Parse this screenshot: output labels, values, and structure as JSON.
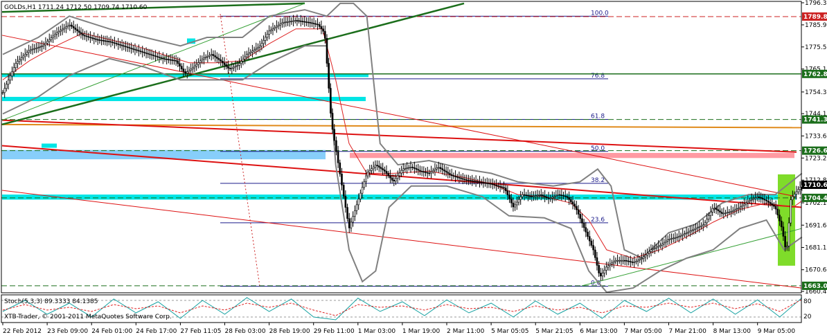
{
  "window": {
    "symbol_header": "GOLDs,H1  1711.24 1712.50 1709.74 1710.60",
    "stoch_header": "Stoch(5,3,3) 89.3333 84.1385",
    "copyright": "XTB-Trader, © 2001-2011 MetaQuotes Software Corp."
  },
  "chart_data": {
    "type": "candlestick",
    "instrument": "GOLDs",
    "timeframe": "H1",
    "last_ohlc": {
      "open": 1711.24,
      "high": 1712.5,
      "low": 1709.74,
      "close": 1710.6
    },
    "ylim": [
      1660.4,
      1796.3
    ],
    "y_ticks": [
      {
        "v": 1796.3,
        "label": "1796.30"
      },
      {
        "v": 1785.9,
        "label": "1785.90"
      },
      {
        "v": 1775.5,
        "label": "1775.50"
      },
      {
        "v": 1765.1,
        "label": "1765.10"
      },
      {
        "v": 1754.3,
        "label": "1754.30"
      },
      {
        "v": 1744.1,
        "label": "1744.10"
      },
      {
        "v": 1733.6,
        "label": "1733.60"
      },
      {
        "v": 1723.2,
        "label": "1723.20"
      },
      {
        "v": 1712.8,
        "label": "1712.80"
      },
      {
        "v": 1702.1,
        "label": "1702.10"
      },
      {
        "v": 1691.6,
        "label": "1691.60"
      },
      {
        "v": 1681.1,
        "label": "1681.10"
      },
      {
        "v": 1670.6,
        "label": "1670.60"
      },
      {
        "v": 1660.4,
        "label": "1660.40"
      }
    ],
    "price_tags": [
      {
        "v": 1789.8,
        "label": "1789.80",
        "color": "#cc2222"
      },
      {
        "v": 1762.8,
        "label": "1762.80",
        "color": "#1b6e1b"
      },
      {
        "v": 1741.35,
        "label": "1741.35",
        "color": "#1b6e1b"
      },
      {
        "v": 1726.67,
        "label": "1726.67",
        "color": "#1b6e1b"
      },
      {
        "v": 1710.6,
        "label": "1710.60",
        "color": "#000000"
      },
      {
        "v": 1704.43,
        "label": "1704.43",
        "color": "#1b6e1b"
      },
      {
        "v": 1663.04,
        "label": "1663.04",
        "color": "#1b6e1b"
      }
    ],
    "x_ticks": [
      "22 Feb 2012",
      "23 Feb 09:00",
      "24 Feb 01:00",
      "24 Feb 17:00",
      "27 Feb 11:05",
      "28 Feb 03:00",
      "28 Feb 19:00",
      "29 Feb 11:00",
      "1 Mar 03:00",
      "1 Mar 19:00",
      "2 Mar 11:00",
      "5 Mar 05:05",
      "5 Mar 21:05",
      "6 Mar 13:00",
      "7 Mar 05:00",
      "7 Mar 21:00",
      "8 Mar 13:00",
      "9 Mar 05:00"
    ],
    "x_ticks_extent": [
      0,
      17
    ],
    "fibonacci": [
      {
        "label": "100.0",
        "v": 1790.0
      },
      {
        "label": "76.8",
        "v": 1760.5
      },
      {
        "label": "61.8",
        "v": 1741.4
      },
      {
        "label": "50.0",
        "v": 1726.3
      },
      {
        "label": "38.2",
        "v": 1711.3
      },
      {
        "label": "23.6",
        "v": 1692.7
      },
      {
        "label": "0.0",
        "v": 1662.8
      }
    ],
    "close_path": [
      [
        0,
        1754
      ],
      [
        0.3,
        1768
      ],
      [
        0.6,
        1774
      ],
      [
        0.9,
        1776
      ],
      [
        1.2,
        1782
      ],
      [
        1.5,
        1786
      ],
      [
        1.8,
        1781
      ],
      [
        2.1,
        1779
      ],
      [
        2.4,
        1778
      ],
      [
        2.7,
        1776
      ],
      [
        3.0,
        1774
      ],
      [
        3.3,
        1772
      ],
      [
        3.6,
        1770
      ],
      [
        3.9,
        1769
      ],
      [
        4.1,
        1763
      ],
      [
        4.3,
        1766
      ],
      [
        4.5,
        1770
      ],
      [
        4.7,
        1772
      ],
      [
        4.9,
        1769
      ],
      [
        5.1,
        1765
      ],
      [
        5.3,
        1767
      ],
      [
        5.5,
        1772
      ],
      [
        5.8,
        1776
      ],
      [
        6.0,
        1783
      ],
      [
        6.3,
        1787
      ],
      [
        6.6,
        1788
      ],
      [
        6.9,
        1787
      ],
      [
        7.1,
        1786
      ],
      [
        7.25,
        1782
      ],
      [
        7.4,
        1740
      ],
      [
        7.6,
        1715
      ],
      [
        7.8,
        1690
      ],
      [
        8.0,
        1703
      ],
      [
        8.2,
        1716
      ],
      [
        8.4,
        1720
      ],
      [
        8.6,
        1717
      ],
      [
        8.8,
        1712
      ],
      [
        9.0,
        1718
      ],
      [
        9.2,
        1719
      ],
      [
        9.4,
        1717
      ],
      [
        9.6,
        1716
      ],
      [
        9.8,
        1719
      ],
      [
        10.1,
        1715
      ],
      [
        10.4,
        1713
      ],
      [
        10.7,
        1712
      ],
      [
        11.0,
        1711
      ],
      [
        11.3,
        1709
      ],
      [
        11.5,
        1700
      ],
      [
        11.7,
        1706
      ],
      [
        11.9,
        1705
      ],
      [
        12.1,
        1706
      ],
      [
        12.3,
        1704
      ],
      [
        12.5,
        1706
      ],
      [
        12.7,
        1705
      ],
      [
        12.9,
        1700
      ],
      [
        13.1,
        1690
      ],
      [
        13.3,
        1680
      ],
      [
        13.45,
        1667
      ],
      [
        13.6,
        1672
      ],
      [
        13.8,
        1675
      ],
      [
        14.0,
        1675
      ],
      [
        14.2,
        1674
      ],
      [
        14.4,
        1676
      ],
      [
        14.6,
        1680
      ],
      [
        14.8,
        1682
      ],
      [
        15.0,
        1685
      ],
      [
        15.2,
        1686
      ],
      [
        15.4,
        1688
      ],
      [
        15.6,
        1690
      ],
      [
        15.8,
        1692
      ],
      [
        16.0,
        1700
      ],
      [
        16.2,
        1697
      ],
      [
        16.4,
        1698
      ],
      [
        16.6,
        1700
      ],
      [
        16.8,
        1703
      ],
      [
        17.0,
        1705
      ],
      [
        17.2,
        1703
      ],
      [
        17.4,
        1700
      ],
      [
        17.55,
        1690
      ],
      [
        17.65,
        1678
      ],
      [
        17.75,
        1704
      ],
      [
        17.9,
        1708
      ],
      [
        18.0,
        1710.6
      ]
    ],
    "moving_average_path": [
      [
        0,
        1760
      ],
      [
        0.6,
        1769
      ],
      [
        1.2,
        1776
      ],
      [
        1.8,
        1782
      ],
      [
        2.4,
        1779
      ],
      [
        3.0,
        1776
      ],
      [
        3.6,
        1772
      ],
      [
        4.2,
        1768
      ],
      [
        4.8,
        1768
      ],
      [
        5.4,
        1769
      ],
      [
        6.0,
        1777
      ],
      [
        6.6,
        1784
      ],
      [
        7.2,
        1784
      ],
      [
        7.5,
        1760
      ],
      [
        7.8,
        1730
      ],
      [
        8.2,
        1716
      ],
      [
        8.8,
        1716
      ],
      [
        9.6,
        1717
      ],
      [
        10.4,
        1714
      ],
      [
        11.0,
        1711
      ],
      [
        11.6,
        1706
      ],
      [
        12.2,
        1705
      ],
      [
        12.8,
        1702
      ],
      [
        13.2,
        1694
      ],
      [
        13.6,
        1680
      ],
      [
        14.2,
        1676
      ],
      [
        14.8,
        1680
      ],
      [
        15.4,
        1686
      ],
      [
        16.0,
        1693
      ],
      [
        16.6,
        1699
      ],
      [
        17.2,
        1702
      ],
      [
        17.8,
        1700
      ],
      [
        18.0,
        1703
      ]
    ],
    "bollinger_upper_path": [
      [
        0,
        1772
      ],
      [
        0.8,
        1780
      ],
      [
        1.5,
        1790
      ],
      [
        2.4,
        1784
      ],
      [
        3.2,
        1780
      ],
      [
        4.0,
        1776
      ],
      [
        4.6,
        1780
      ],
      [
        5.4,
        1780
      ],
      [
        6.0,
        1790
      ],
      [
        6.8,
        1793
      ],
      [
        7.3,
        1790
      ],
      [
        7.6,
        1796
      ],
      [
        7.9,
        1796
      ],
      [
        8.2,
        1790
      ],
      [
        8.5,
        1730
      ],
      [
        8.9,
        1720
      ],
      [
        9.6,
        1722
      ],
      [
        10.4,
        1718
      ],
      [
        11.0,
        1716
      ],
      [
        11.6,
        1712
      ],
      [
        12.4,
        1710
      ],
      [
        13.0,
        1712
      ],
      [
        13.4,
        1718
      ],
      [
        13.7,
        1710
      ],
      [
        14.0,
        1680
      ],
      [
        14.4,
        1676
      ],
      [
        15.0,
        1688
      ],
      [
        15.6,
        1692
      ],
      [
        16.2,
        1702
      ],
      [
        16.8,
        1706
      ],
      [
        17.4,
        1706
      ],
      [
        18.0,
        1716
      ]
    ],
    "bollinger_lower_path": [
      [
        0,
        1744
      ],
      [
        0.8,
        1752
      ],
      [
        1.5,
        1762
      ],
      [
        2.4,
        1770
      ],
      [
        3.2,
        1766
      ],
      [
        4.0,
        1760
      ],
      [
        4.8,
        1760
      ],
      [
        5.4,
        1760
      ],
      [
        6.0,
        1768
      ],
      [
        6.8,
        1776
      ],
      [
        7.3,
        1776
      ],
      [
        7.5,
        1720
      ],
      [
        7.8,
        1680
      ],
      [
        8.1,
        1665
      ],
      [
        8.4,
        1670
      ],
      [
        8.7,
        1700
      ],
      [
        9.2,
        1710
      ],
      [
        10.0,
        1710
      ],
      [
        10.8,
        1705
      ],
      [
        11.4,
        1696
      ],
      [
        12.2,
        1695
      ],
      [
        12.8,
        1690
      ],
      [
        13.2,
        1670
      ],
      [
        13.6,
        1660
      ],
      [
        14.2,
        1662
      ],
      [
        14.8,
        1670
      ],
      [
        15.4,
        1676
      ],
      [
        16.0,
        1680
      ],
      [
        16.6,
        1690
      ],
      [
        17.2,
        1694
      ],
      [
        17.6,
        1680
      ],
      [
        18.0,
        1686
      ]
    ],
    "stochastic": {
      "k": 89.3333,
      "d": 84.1385,
      "ylim": [
        0,
        100
      ],
      "levels": [
        20,
        80
      ],
      "k_path": [
        [
          0,
          40
        ],
        [
          0.5,
          80
        ],
        [
          1,
          30
        ],
        [
          1.5,
          70
        ],
        [
          2,
          20
        ],
        [
          2.5,
          85
        ],
        [
          3,
          35
        ],
        [
          3.5,
          75
        ],
        [
          4,
          15
        ],
        [
          4.5,
          80
        ],
        [
          5,
          30
        ],
        [
          5.5,
          90
        ],
        [
          6,
          40
        ],
        [
          6.5,
          85
        ],
        [
          7,
          20
        ],
        [
          7.5,
          10
        ],
        [
          8,
          88
        ],
        [
          8.5,
          40
        ],
        [
          9,
          75
        ],
        [
          9.5,
          25
        ],
        [
          10,
          82
        ],
        [
          10.5,
          35
        ],
        [
          11,
          70
        ],
        [
          11.5,
          20
        ],
        [
          12,
          78
        ],
        [
          12.5,
          30
        ],
        [
          13,
          70
        ],
        [
          13.5,
          15
        ],
        [
          14,
          80
        ],
        [
          14.5,
          40
        ],
        [
          15,
          88
        ],
        [
          15.5,
          35
        ],
        [
          16,
          85
        ],
        [
          16.5,
          30
        ],
        [
          17,
          82
        ],
        [
          17.5,
          20
        ],
        [
          18,
          89.3
        ]
      ],
      "d_path": [
        [
          0,
          45
        ],
        [
          0.5,
          65
        ],
        [
          1,
          45
        ],
        [
          1.5,
          55
        ],
        [
          2,
          40
        ],
        [
          2.5,
          65
        ],
        [
          3,
          50
        ],
        [
          3.5,
          60
        ],
        [
          4,
          35
        ],
        [
          4.5,
          60
        ],
        [
          5,
          45
        ],
        [
          5.5,
          70
        ],
        [
          6,
          55
        ],
        [
          6.5,
          70
        ],
        [
          7,
          45
        ],
        [
          7.5,
          25
        ],
        [
          8,
          65
        ],
        [
          8.5,
          55
        ],
        [
          9,
          60
        ],
        [
          9.5,
          45
        ],
        [
          10,
          65
        ],
        [
          10.5,
          50
        ],
        [
          11,
          55
        ],
        [
          11.5,
          40
        ],
        [
          12,
          60
        ],
        [
          12.5,
          45
        ],
        [
          13,
          55
        ],
        [
          13.5,
          35
        ],
        [
          14,
          60
        ],
        [
          14.5,
          55
        ],
        [
          15,
          70
        ],
        [
          15.5,
          55
        ],
        [
          16,
          70
        ],
        [
          16.5,
          50
        ],
        [
          17,
          68
        ],
        [
          17.5,
          40
        ],
        [
          18,
          84.1
        ]
      ]
    },
    "stoch_axis_labels": [
      "80",
      "20"
    ]
  }
}
